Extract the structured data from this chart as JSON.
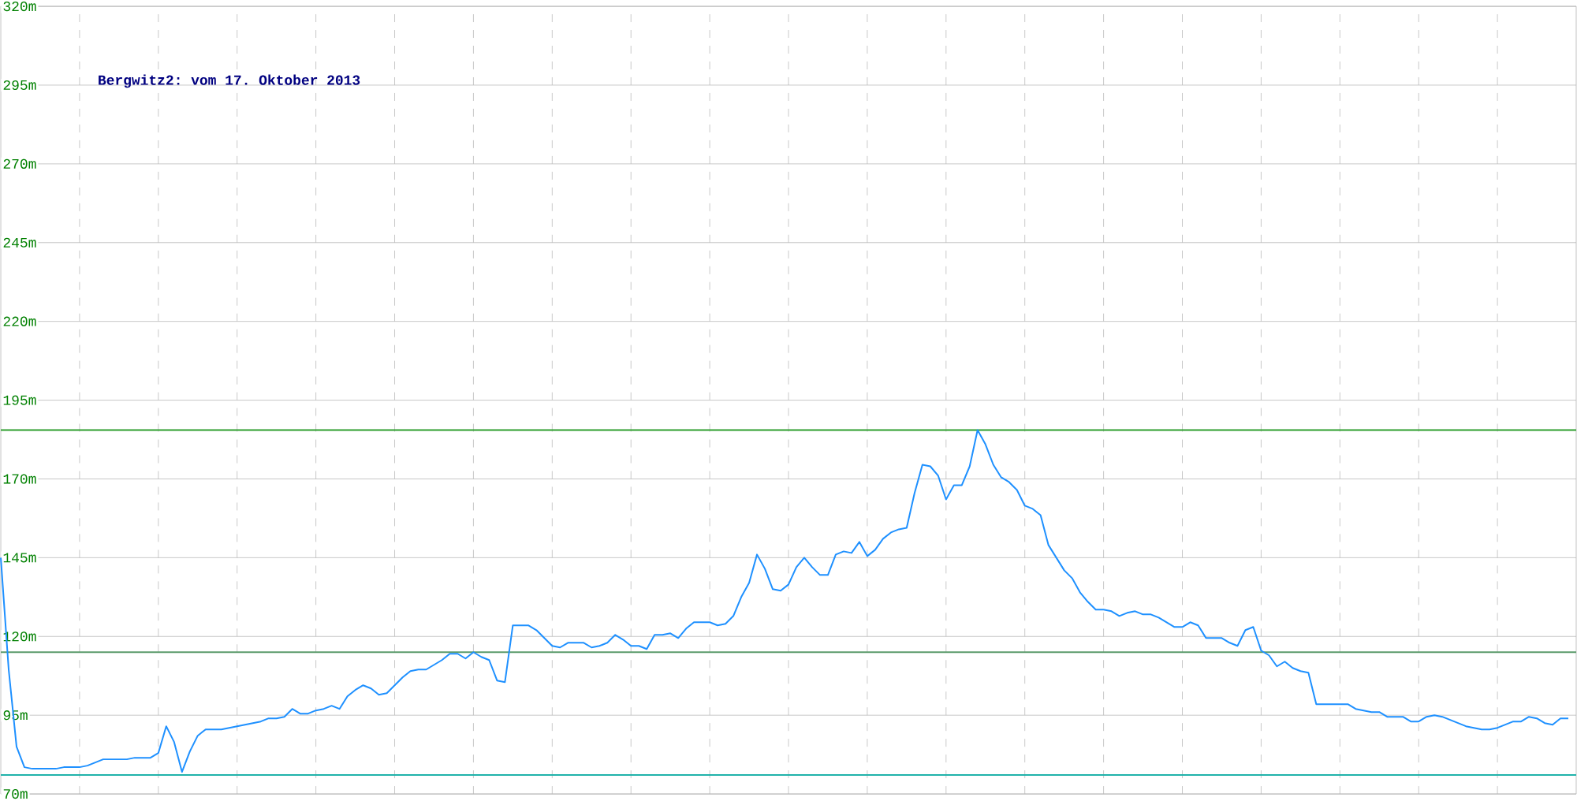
{
  "chart_data": {
    "type": "line",
    "title": "Bergwitz2: vom 17. Oktober 2013",
    "color": "#1e90ff",
    "categories": [
      null,
      null,
      null,
      null,
      null,
      null,
      null,
      null,
      null,
      null,
      null,
      null,
      null,
      null,
      null,
      null,
      null,
      null,
      null,
      null,
      null,
      null,
      null,
      null,
      null,
      null,
      null,
      null,
      null,
      null,
      null,
      null,
      null,
      null,
      null,
      null,
      null,
      null,
      null,
      null,
      null,
      null,
      null,
      null,
      null,
      null,
      null,
      null,
      null,
      null,
      null,
      null,
      null,
      null,
      null,
      null,
      null,
      null,
      null,
      null,
      null,
      null,
      null,
      null,
      null,
      null,
      null,
      null,
      null,
      null,
      null,
      null,
      null,
      null,
      null,
      null,
      null,
      null,
      null,
      null,
      null,
      null,
      null,
      null,
      null,
      null,
      null,
      null,
      null,
      null,
      null,
      null,
      null,
      null,
      null,
      null,
      null,
      null,
      null,
      null,
      null,
      null,
      null,
      null,
      null,
      null,
      null,
      null,
      null,
      null,
      null,
      null,
      null,
      null,
      null,
      null,
      null,
      null,
      null,
      null,
      null,
      null,
      null,
      null,
      null,
      null,
      null,
      null,
      null,
      null,
      null,
      null,
      null,
      null,
      null,
      null,
      null,
      null,
      null,
      null,
      null,
      null,
      null,
      null,
      null,
      null,
      null,
      null,
      null,
      null,
      null,
      null,
      null,
      null,
      null,
      null,
      null,
      null,
      null,
      null,
      null,
      null,
      null,
      null,
      null,
      null,
      null,
      null,
      null,
      null,
      null,
      null,
      null,
      null,
      null,
      null,
      null,
      null,
      null,
      null,
      null,
      null,
      null,
      null,
      null,
      null,
      null,
      null,
      null,
      null,
      null,
      null,
      null,
      null,
      null,
      null,
      null,
      null,
      null,
      null
    ],
    "values": [
      145,
      109.5,
      85,
      78.5,
      78,
      78,
      78,
      78,
      78.5,
      78.5,
      78.5,
      79,
      80,
      81,
      81,
      81,
      81,
      81.5,
      81.5,
      81.5,
      83,
      91.5,
      86.5,
      77,
      83.5,
      88.5,
      90.5,
      90.5,
      90.5,
      91,
      91.5,
      92,
      92.5,
      93,
      94,
      94,
      94.5,
      97,
      95.5,
      95.5,
      96.5,
      97,
      98,
      97,
      101,
      103,
      104.5,
      103.5,
      101.5,
      102,
      104.5,
      107,
      109,
      109.5,
      109.5,
      111,
      112.5,
      114.5,
      114.5,
      113,
      115,
      113.5,
      112.5,
      106,
      105.5,
      123.5,
      123.5,
      123.5,
      122,
      119.5,
      117,
      116.5,
      118,
      118,
      118,
      116.5,
      117,
      118,
      120.5,
      119,
      117,
      117,
      116,
      120.5,
      120.5,
      121,
      119.5,
      122.5,
      124.5,
      124.5,
      124.5,
      123.5,
      124,
      126.5,
      132.5,
      137,
      146,
      141.5,
      135,
      134.5,
      136.5,
      142,
      145,
      142,
      139.5,
      139.5,
      146,
      147,
      146.5,
      150,
      145.5,
      147.5,
      151,
      153,
      154,
      154.5,
      165.5,
      174.5,
      174,
      171,
      163.5,
      168,
      168,
      174,
      185.5,
      181,
      174.5,
      170.5,
      169,
      166.5,
      161.5,
      160.5,
      158.5,
      149,
      145,
      141,
      138.5,
      134,
      131,
      128.5,
      128.5,
      128,
      126.5,
      127.5,
      128,
      127,
      127,
      126,
      124.5,
      123,
      123,
      124.5,
      123.5,
      119.5,
      119.5,
      119.5,
      118,
      117,
      122,
      123,
      115.5,
      114,
      110.5,
      112,
      110,
      109,
      108.5,
      98.5,
      98.5,
      98.5,
      98.5,
      98.5,
      97,
      96.5,
      96,
      96,
      94.5,
      94.5,
      94.5,
      93,
      93,
      94.5,
      95,
      94.5,
      93.5,
      92.5,
      91.5,
      91,
      90.5,
      90.5,
      91,
      92,
      93,
      93,
      94.5,
      94,
      92.5,
      92,
      94,
      94
    ],
    "ylim": [
      70,
      320
    ],
    "yticks": [
      {
        "value": 70,
        "label": "70m"
      },
      {
        "value": 95,
        "label": "95m"
      },
      {
        "value": 120,
        "label": "120m"
      },
      {
        "value": 145,
        "label": "145m"
      },
      {
        "value": 170,
        "label": "170m"
      },
      {
        "value": 195,
        "label": "195m"
      },
      {
        "value": 220,
        "label": "220m"
      },
      {
        "value": 245,
        "label": "245m"
      },
      {
        "value": 270,
        "label": "270m"
      },
      {
        "value": 295,
        "label": "295m"
      },
      {
        "value": 320,
        "label": "320m"
      }
    ],
    "grid": true,
    "tick_labels": "y",
    "ref_lines": [
      {
        "axis": "y",
        "value": 185.5,
        "color": "#2e9e2e"
      },
      {
        "axis": "y",
        "value": 115,
        "color": "#5a9a6a"
      },
      {
        "axis": "y",
        "value": 76,
        "color": "#20b2aa"
      }
    ]
  }
}
